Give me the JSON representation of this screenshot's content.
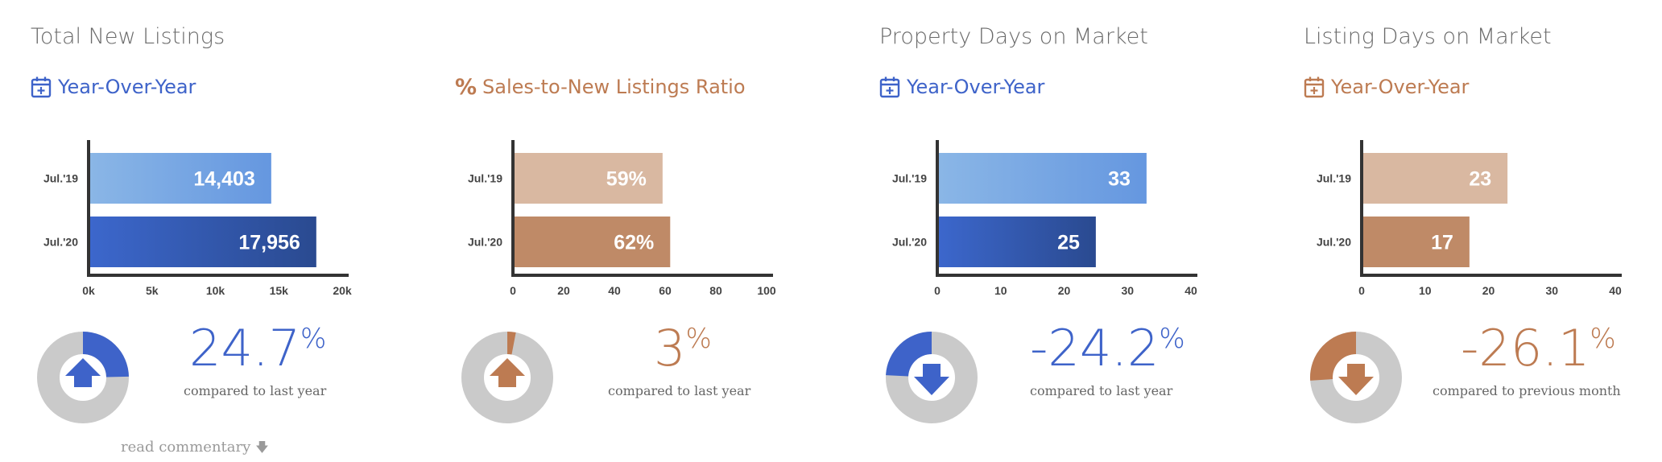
{
  "colors": {
    "blue": "#3e63c9",
    "blue_light_start": "#8ab6e6",
    "blue_light_end": "#6597e0",
    "blue_dark_start": "#3c67cc",
    "blue_dark_end": "#2a4a90",
    "copper": "#bd7b52",
    "copper_light": "#d9b8a1",
    "copper_dark": "#bf8a67",
    "donut_track": "#cacaca",
    "axis": "#333333"
  },
  "panels": [
    {
      "title": "Total New Listings",
      "subtitle": "Year-Over-Year",
      "subtitle_icon": "calendar-plus-icon",
      "accent": "blue",
      "big_number": "24.7",
      "unit": "%",
      "compare_text": "compared to last year",
      "donut_fraction": 0.247,
      "trend_icon": "arrow-up-icon",
      "trend": "up"
    },
    {
      "title": "",
      "subtitle": "Sales-to-New Listings Ratio",
      "subtitle_icon": "percent-icon",
      "accent": "copper",
      "big_number": "3",
      "unit": "%",
      "compare_text": "compared to last year",
      "donut_fraction": 0.03,
      "trend_icon": "arrow-up-icon",
      "trend": "up"
    },
    {
      "title": "Property Days on Market",
      "subtitle": "Year-Over-Year",
      "subtitle_icon": "calendar-plus-icon",
      "accent": "blue",
      "big_number": "-24.2",
      "unit": "%",
      "compare_text": "compared to last year",
      "donut_fraction": 0.242,
      "trend_icon": "arrow-down-icon",
      "trend": "down"
    },
    {
      "title": "Listing Days on Market",
      "subtitle": "Year-Over-Year",
      "subtitle_icon": "calendar-plus-icon",
      "accent": "copper",
      "big_number": "-26.1",
      "unit": "%",
      "compare_text": "compared to previous month",
      "donut_fraction": 0.261,
      "trend_icon": "arrow-down-icon",
      "trend": "down"
    }
  ],
  "read_commentary": {
    "label": "read commentary",
    "icon": "arrow-down-icon"
  },
  "chart_data": [
    {
      "type": "bar",
      "orientation": "horizontal",
      "categories": [
        "Jul.'19",
        "Jul.'20"
      ],
      "values": [
        14403,
        17956
      ],
      "data_labels": [
        "14,403",
        "17,956"
      ],
      "xlim": [
        0,
        20000
      ],
      "x_ticks": [
        0,
        5000,
        10000,
        15000,
        20000
      ],
      "x_tick_labels": [
        "0k",
        "5k",
        "10k",
        "15k",
        "20k"
      ],
      "grid": false
    },
    {
      "type": "bar",
      "orientation": "horizontal",
      "categories": [
        "Jul.'19",
        "Jul.'20"
      ],
      "values": [
        59,
        62
      ],
      "data_labels": [
        "59%",
        "62%"
      ],
      "xlim": [
        0,
        100
      ],
      "x_ticks": [
        0,
        20,
        40,
        60,
        80,
        100
      ],
      "x_tick_labels": [
        "0",
        "20",
        "40",
        "60",
        "80",
        "100"
      ],
      "grid": false
    },
    {
      "type": "bar",
      "orientation": "horizontal",
      "categories": [
        "Jul.'19",
        "Jul.'20"
      ],
      "values": [
        33,
        25
      ],
      "data_labels": [
        "33",
        "25"
      ],
      "xlim": [
        0,
        40
      ],
      "x_ticks": [
        0,
        10,
        20,
        30,
        40
      ],
      "x_tick_labels": [
        "0",
        "10",
        "20",
        "30",
        "40"
      ],
      "grid": false
    },
    {
      "type": "bar",
      "orientation": "horizontal",
      "categories": [
        "Jul.'19",
        "Jul.'20"
      ],
      "values": [
        23,
        17
      ],
      "data_labels": [
        "23",
        "17"
      ],
      "xlim": [
        0,
        40
      ],
      "x_ticks": [
        0,
        10,
        20,
        30,
        40
      ],
      "x_tick_labels": [
        "0",
        "10",
        "20",
        "30",
        "40"
      ],
      "grid": false
    }
  ]
}
